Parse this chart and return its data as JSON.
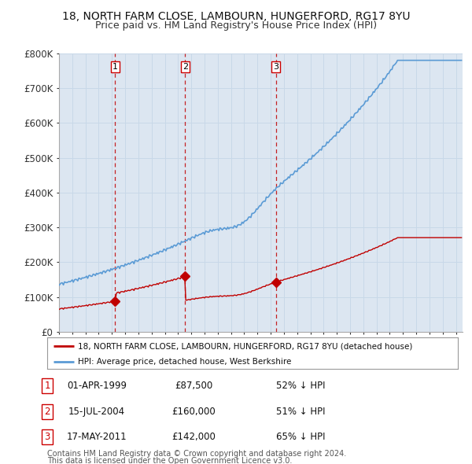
{
  "title1": "18, NORTH FARM CLOSE, LAMBOURN, HUNGERFORD, RG17 8YU",
  "title2": "Price paid vs. HM Land Registry's House Price Index (HPI)",
  "ylabel_ticks": [
    "£0",
    "£100K",
    "£200K",
    "£300K",
    "£400K",
    "£500K",
    "£600K",
    "£700K",
    "£800K"
  ],
  "ytick_vals": [
    0,
    100000,
    200000,
    300000,
    400000,
    500000,
    600000,
    700000,
    800000
  ],
  "ylim": [
    0,
    800000
  ],
  "xlim_start": 1995.0,
  "xlim_end": 2025.5,
  "hpi_color": "#5b9bd5",
  "hpi_fill_color": "#dce6f1",
  "price_color": "#c00000",
  "dashed_color": "#c00000",
  "sale1_x": 1999.25,
  "sale1_y": 87500,
  "sale2_x": 2004.54,
  "sale2_y": 160000,
  "sale3_x": 2011.38,
  "sale3_y": 142000,
  "legend_label1": "18, NORTH FARM CLOSE, LAMBOURN, HUNGERFORD, RG17 8YU (detached house)",
  "legend_label2": "HPI: Average price, detached house, West Berkshire",
  "table_rows": [
    {
      "num": "1",
      "date": "01-APR-1999",
      "price": "£87,500",
      "pct": "52% ↓ HPI"
    },
    {
      "num": "2",
      "date": "15-JUL-2004",
      "price": "£160,000",
      "pct": "51% ↓ HPI"
    },
    {
      "num": "3",
      "date": "17-MAY-2011",
      "price": "£142,000",
      "pct": "65% ↓ HPI"
    }
  ],
  "footnote1": "Contains HM Land Registry data © Crown copyright and database right 2024.",
  "footnote2": "This data is licensed under the Open Government Licence v3.0.",
  "bg_color": "#ffffff",
  "grid_color": "#c8d8e8",
  "axis_label_color": "#222222"
}
